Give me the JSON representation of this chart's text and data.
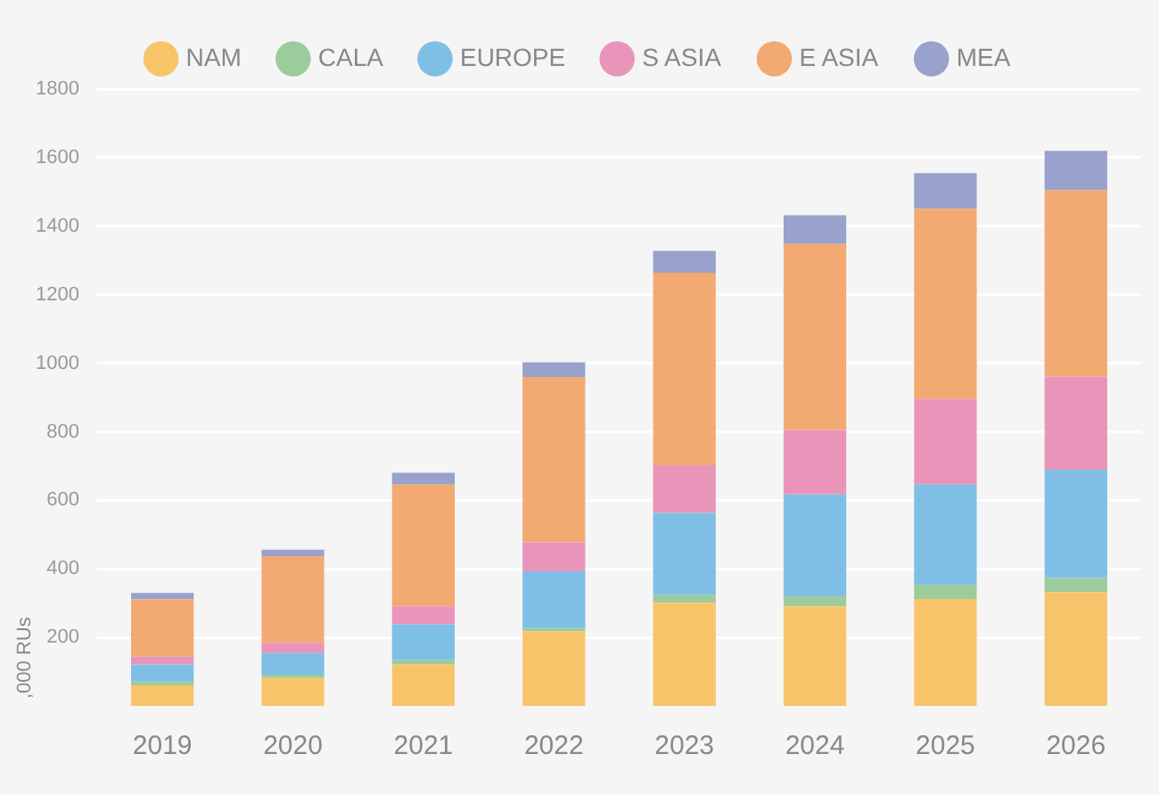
{
  "chart_data": {
    "type": "bar",
    "stacked": true,
    "ylabel": ",000 RUs",
    "categories": [
      "2019",
      "2020",
      "2021",
      "2022",
      "2023",
      "2024",
      "2025",
      "2026"
    ],
    "series": [
      {
        "name": "NAM",
        "color": "#f8c46a",
        "values": [
          60,
          81,
          121,
          217,
          301,
          291,
          312,
          332
        ]
      },
      {
        "name": "CALA",
        "color": "#9ccb9c",
        "values": [
          11,
          10,
          12,
          10,
          23,
          29,
          41,
          41
        ]
      },
      {
        "name": "EUROPE",
        "color": "#7fbfe6",
        "values": [
          50,
          63,
          105,
          166,
          239,
          297,
          293,
          316
        ]
      },
      {
        "name": "S ASIA",
        "color": "#e995ba",
        "values": [
          23,
          30,
          53,
          84,
          139,
          188,
          250,
          272
        ]
      },
      {
        "name": "E ASIA",
        "color": "#f2aa72",
        "values": [
          167,
          253,
          355,
          483,
          562,
          543,
          555,
          544
        ]
      },
      {
        "name": "MEA",
        "color": "#98a2cc",
        "values": [
          19,
          19,
          34,
          43,
          64,
          84,
          104,
          115
        ]
      }
    ],
    "ylim": [
      0,
      1800
    ],
    "yticks": [
      200,
      400,
      600,
      800,
      1000,
      1200,
      1400,
      1600,
      1800
    ],
    "grid": "y",
    "legend": "top"
  }
}
